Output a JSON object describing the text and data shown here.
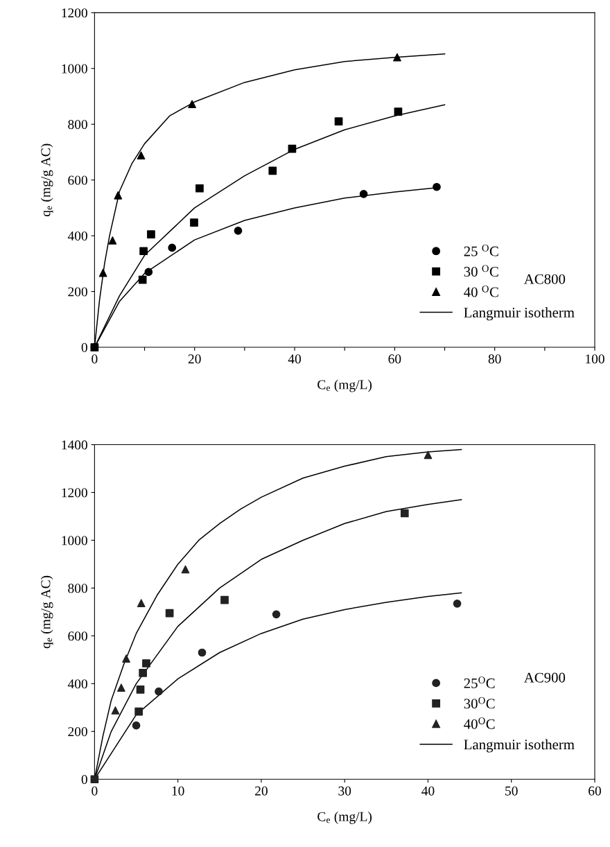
{
  "chart_data": [
    {
      "type": "scatter",
      "xlabel": "C$_{e}$ (mg/L)",
      "ylabel": "q$_{e}$ (mg/g AC)",
      "xlim": [
        0,
        100
      ],
      "ylim": [
        0,
        1200
      ],
      "xticks": [
        0,
        {
          "value": 10,
          "label": null
        },
        20,
        {
          "value": 30,
          "label": null
        },
        40,
        {
          "value": 50,
          "label": null
        },
        60,
        {
          "value": 70,
          "label": null
        },
        80,
        {
          "value": 90,
          "label": null
        },
        100
      ],
      "yticks": [
        0,
        200,
        400,
        600,
        800,
        1000,
        1200
      ],
      "grid": false,
      "legend": "bottom right",
      "annotations": [
        "AC800"
      ],
      "series": [
        {
          "name": "25 $^{O}$C",
          "color": "#000000",
          "marker": "circle",
          "x": [
            0,
            10.8,
            15.5,
            28.7,
            53.8,
            68.4
          ],
          "values": [
            0,
            270,
            357,
            418,
            550,
            575
          ]
        },
        {
          "name": "30 $^{O}$C",
          "color": "#000000",
          "marker": "square",
          "x": [
            0,
            9.6,
            9.8,
            11.3,
            19.9,
            21,
            35.6,
            39.5,
            48.8,
            60.7
          ],
          "values": [
            0,
            242,
            345,
            405,
            447,
            570,
            633,
            712,
            810,
            845
          ]
        },
        {
          "name": "40 $^{O}$C",
          "color": "#000000",
          "marker": "triangle",
          "x": [
            0,
            1.7,
            3.6,
            4.7,
            9.3,
            19.5,
            60.5
          ],
          "values": [
            0,
            267,
            383,
            545,
            688,
            872,
            1040
          ]
        },
        {
          "name": "Langmuir isotherm",
          "type": "line",
          "color": "#000000",
          "x": [
            0,
            5,
            10,
            20,
            30,
            40,
            50,
            60,
            68.4
          ],
          "values": [
            0,
            165,
            265,
            385,
            455,
            500,
            535,
            557,
            572
          ]
        },
        {
          "type": "line",
          "color": "#000000",
          "x": [
            0,
            5,
            10,
            20,
            30,
            40,
            50,
            60,
            70
          ],
          "values": [
            0,
            185,
            330,
            500,
            615,
            710,
            780,
            830,
            870
          ]
        },
        {
          "type": "line",
          "color": "#000000",
          "x": [
            0,
            1,
            2,
            3,
            5,
            7.5,
            10,
            15,
            20,
            30,
            40,
            50,
            60,
            70
          ],
          "values": [
            0,
            170,
            300,
            400,
            560,
            660,
            730,
            830,
            880,
            950,
            995,
            1025,
            1040,
            1052
          ]
        }
      ]
    },
    {
      "type": "scatter",
      "xlabel": "C$_{e}$ (mg/L)",
      "ylabel": "q$_{e}$ (mg/g AC)",
      "xlim": [
        0,
        60
      ],
      "ylim": [
        0,
        1400
      ],
      "xticks": [
        0,
        10,
        20,
        30,
        40,
        50,
        60
      ],
      "yticks": [
        0,
        200,
        400,
        600,
        800,
        1000,
        1200,
        1400
      ],
      "grid": false,
      "legend": "bottom right",
      "annotations": [
        "AC900"
      ],
      "series": [
        {
          "name": "25$^{O}$C",
          "color": "#222222",
          "marker": "circle",
          "x": [
            5,
            7.7,
            12.9,
            21.8,
            43.5
          ],
          "values": [
            225,
            367,
            530,
            690,
            735
          ]
        },
        {
          "name": "30$^{O}$C",
          "color": "#222222",
          "marker": "square",
          "x": [
            0,
            5.3,
            5.5,
            5.8,
            6.2,
            9,
            15.6,
            37.2
          ],
          "values": [
            0,
            283,
            375,
            445,
            485,
            695,
            750,
            1113
          ]
        },
        {
          "name": "40$^{O}$C",
          "color": "#222222",
          "marker": "triangle",
          "x": [
            2.5,
            3.2,
            3.8,
            5.6,
            10.9,
            40
          ],
          "values": [
            288,
            383,
            505,
            737,
            878,
            1357
          ]
        },
        {
          "name": "Langmuir isotherm",
          "type": "line",
          "color": "#000000",
          "x": [
            0,
            5,
            10,
            15,
            20,
            25,
            30,
            35,
            40,
            44
          ],
          "values": [
            0,
            270,
            420,
            530,
            610,
            670,
            710,
            740,
            765,
            780
          ]
        },
        {
          "type": "line",
          "color": "#000000",
          "x": [
            0,
            2,
            5,
            10,
            15,
            20,
            25,
            30,
            35,
            40,
            44
          ],
          "values": [
            0,
            200,
            400,
            640,
            800,
            920,
            1000,
            1070,
            1120,
            1150,
            1170
          ]
        },
        {
          "type": "line",
          "color": "#000000",
          "x": [
            0,
            1,
            2,
            3.5,
            5,
            7.5,
            10,
            12.5,
            15,
            17.5,
            20,
            25,
            30,
            35,
            40,
            44
          ],
          "values": [
            0,
            180,
            330,
            480,
            610,
            770,
            900,
            1000,
            1070,
            1130,
            1180,
            1260,
            1310,
            1350,
            1370,
            1380
          ]
        }
      ]
    }
  ]
}
